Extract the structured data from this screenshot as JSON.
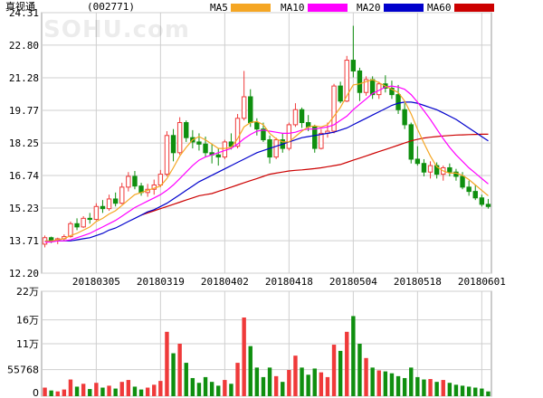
{
  "header": {
    "stock_name": "真视通",
    "stock_code": "(002771)"
  },
  "watermark": "SOHU.com",
  "colors": {
    "background": "#ffffff",
    "grid": "#cfcfcf",
    "frame": "#999999",
    "up": "#ef3a3a",
    "down": "#0f8f0f",
    "ma5": "#f5a623",
    "ma10": "#ff00ff",
    "ma20": "#0000cc",
    "ma60": "#cc0000"
  },
  "legend": [
    {
      "label": "MA5",
      "color": "#f5a623"
    },
    {
      "label": "MA10",
      "color": "#ff00ff"
    },
    {
      "label": "MA20",
      "color": "#0000cc"
    },
    {
      "label": "MA60",
      "color": "#cc0000"
    }
  ],
  "chart_data": [
    {
      "type": "candlestick",
      "title": "真视通 (002771)",
      "ylim": [
        12.2,
        24.31
      ],
      "y_ticks": [
        "24.31",
        "22.80",
        "21.28",
        "19.77",
        "18.25",
        "16.74",
        "15.23",
        "13.71",
        "12.20"
      ],
      "x_ticks": [
        {
          "index": 8,
          "label": "20180305"
        },
        {
          "index": 18,
          "label": "20180319"
        },
        {
          "index": 28,
          "label": "20180402"
        },
        {
          "index": 38,
          "label": "20180418"
        },
        {
          "index": 48,
          "label": "20180504"
        },
        {
          "index": 58,
          "label": "20180518"
        },
        {
          "index": 68,
          "label": "20180601"
        }
      ],
      "candles": [
        [
          13.55,
          13.95,
          13.4,
          13.85
        ],
        [
          13.85,
          13.9,
          13.6,
          13.7
        ],
        [
          13.7,
          13.85,
          13.55,
          13.8
        ],
        [
          13.8,
          14.0,
          13.7,
          13.9
        ],
        [
          13.9,
          14.6,
          13.85,
          14.5
        ],
        [
          14.5,
          14.75,
          14.2,
          14.35
        ],
        [
          14.35,
          14.85,
          14.3,
          14.75
        ],
        [
          14.75,
          15.0,
          14.5,
          14.7
        ],
        [
          14.7,
          15.45,
          14.65,
          15.3
        ],
        [
          15.3,
          15.6,
          15.0,
          15.2
        ],
        [
          15.2,
          15.85,
          15.1,
          15.65
        ],
        [
          15.65,
          15.95,
          15.3,
          15.45
        ],
        [
          15.45,
          16.4,
          15.4,
          16.2
        ],
        [
          16.2,
          16.9,
          16.0,
          16.7
        ],
        [
          16.7,
          16.95,
          16.1,
          16.25
        ],
        [
          16.25,
          16.4,
          15.8,
          15.95
        ],
        [
          15.95,
          16.35,
          15.75,
          16.1
        ],
        [
          16.1,
          16.55,
          15.85,
          16.3
        ],
        [
          16.3,
          17.0,
          16.2,
          16.8
        ],
        [
          16.8,
          18.8,
          16.7,
          18.6
        ],
        [
          18.6,
          18.9,
          17.4,
          17.8
        ],
        [
          17.8,
          19.45,
          17.7,
          19.2
        ],
        [
          19.2,
          19.3,
          18.3,
          18.5
        ],
        [
          18.5,
          18.85,
          18.0,
          18.3
        ],
        [
          18.3,
          18.7,
          17.9,
          18.2
        ],
        [
          18.2,
          18.55,
          17.6,
          17.8
        ],
        [
          17.8,
          18.2,
          17.3,
          17.7
        ],
        [
          17.7,
          18.0,
          17.2,
          17.6
        ],
        [
          17.6,
          18.4,
          17.5,
          18.3
        ],
        [
          18.3,
          18.7,
          17.95,
          18.1
        ],
        [
          18.1,
          19.6,
          18.0,
          19.4
        ],
        [
          19.4,
          21.6,
          19.3,
          20.4
        ],
        [
          20.4,
          20.75,
          19.0,
          19.2
        ],
        [
          19.2,
          19.4,
          18.6,
          18.9
        ],
        [
          18.9,
          19.2,
          18.3,
          18.4
        ],
        [
          18.4,
          18.6,
          17.3,
          17.6
        ],
        [
          17.6,
          18.5,
          17.5,
          18.4
        ],
        [
          18.4,
          18.7,
          17.8,
          18.0
        ],
        [
          18.0,
          19.2,
          17.9,
          19.1
        ],
        [
          19.1,
          20.1,
          19.0,
          19.8
        ],
        [
          19.8,
          19.9,
          18.95,
          19.2
        ],
        [
          19.2,
          19.55,
          18.8,
          19.0
        ],
        [
          19.0,
          19.1,
          17.8,
          18.0
        ],
        [
          18.0,
          18.9,
          17.95,
          18.7
        ],
        [
          18.7,
          19.2,
          18.5,
          18.8
        ],
        [
          18.8,
          21.0,
          18.7,
          20.9
        ],
        [
          20.9,
          21.1,
          20.1,
          20.2
        ],
        [
          20.2,
          22.3,
          20.15,
          22.1
        ],
        [
          22.1,
          23.7,
          21.3,
          21.6
        ],
        [
          21.6,
          21.75,
          20.2,
          20.6
        ],
        [
          20.6,
          21.35,
          20.45,
          21.2
        ],
        [
          21.2,
          21.35,
          20.3,
          20.5
        ],
        [
          20.5,
          21.1,
          20.3,
          21.0
        ],
        [
          21.0,
          21.4,
          20.6,
          20.8
        ],
        [
          20.8,
          21.15,
          20.3,
          20.5
        ],
        [
          20.5,
          20.95,
          19.6,
          19.8
        ],
        [
          19.8,
          20.1,
          18.9,
          19.1
        ],
        [
          19.1,
          19.2,
          17.3,
          17.5
        ],
        [
          17.5,
          18.1,
          17.2,
          17.3
        ],
        [
          17.3,
          17.5,
          16.7,
          16.9
        ],
        [
          16.9,
          17.4,
          16.6,
          17.2
        ],
        [
          17.2,
          17.35,
          16.6,
          16.8
        ],
        [
          16.8,
          17.2,
          16.5,
          17.1
        ],
        [
          17.1,
          17.3,
          16.7,
          16.9
        ],
        [
          16.9,
          17.05,
          16.5,
          16.7
        ],
        [
          16.7,
          16.9,
          16.1,
          16.2
        ],
        [
          16.2,
          16.5,
          15.8,
          16.0
        ],
        [
          16.0,
          16.3,
          15.6,
          15.7
        ],
        [
          15.7,
          15.85,
          15.3,
          15.4
        ],
        [
          15.4,
          15.65,
          15.2,
          15.3
        ]
      ],
      "ma5": [
        13.7,
        13.7,
        13.75,
        13.8,
        13.95,
        14.05,
        14.2,
        14.35,
        14.6,
        14.75,
        14.95,
        15.1,
        15.35,
        15.6,
        15.85,
        15.95,
        16.05,
        16.15,
        16.25,
        16.6,
        17.1,
        17.65,
        18.05,
        18.4,
        18.55,
        18.4,
        18.2,
        18.0,
        18.0,
        18.05,
        18.45,
        19.0,
        19.2,
        19.25,
        19.1,
        18.7,
        18.45,
        18.3,
        18.3,
        18.55,
        18.8,
        19.0,
        19.05,
        19.0,
        19.1,
        19.5,
        19.9,
        20.45,
        20.95,
        21.0,
        21.1,
        21.2,
        21.05,
        20.9,
        20.75,
        20.6,
        20.2,
        19.6,
        18.9,
        18.25,
        17.65,
        17.15,
        16.95,
        16.85,
        16.85,
        16.75,
        16.55,
        16.3,
        16.05,
        15.8
      ],
      "ma10": [
        13.65,
        13.65,
        13.7,
        13.7,
        13.75,
        13.85,
        13.95,
        14.05,
        14.2,
        14.35,
        14.5,
        14.65,
        14.85,
        15.05,
        15.25,
        15.4,
        15.55,
        15.7,
        15.85,
        16.05,
        16.3,
        16.6,
        16.9,
        17.2,
        17.45,
        17.6,
        17.7,
        17.8,
        17.9,
        18.0,
        18.2,
        18.45,
        18.65,
        18.8,
        18.85,
        18.8,
        18.75,
        18.7,
        18.7,
        18.75,
        18.85,
        18.9,
        18.9,
        18.95,
        19.0,
        19.1,
        19.3,
        19.5,
        19.8,
        20.05,
        20.3,
        20.55,
        20.7,
        20.85,
        20.9,
        20.85,
        20.75,
        20.5,
        20.15,
        19.75,
        19.35,
        18.9,
        18.45,
        18.05,
        17.7,
        17.4,
        17.1,
        16.85,
        16.6,
        16.35
      ],
      "ma20": [
        13.7,
        13.7,
        13.7,
        13.7,
        13.7,
        13.75,
        13.8,
        13.85,
        13.95,
        14.05,
        14.2,
        14.3,
        14.45,
        14.6,
        14.75,
        14.9,
        15.05,
        15.15,
        15.3,
        15.45,
        15.65,
        15.85,
        16.05,
        16.25,
        16.45,
        16.6,
        16.75,
        16.9,
        17.05,
        17.2,
        17.35,
        17.5,
        17.65,
        17.8,
        17.9,
        18.0,
        18.1,
        18.2,
        18.3,
        18.4,
        18.5,
        18.55,
        18.6,
        18.65,
        18.7,
        18.75,
        18.85,
        18.95,
        19.1,
        19.25,
        19.4,
        19.55,
        19.7,
        19.85,
        20.0,
        20.1,
        20.15,
        20.15,
        20.1,
        20.0,
        19.9,
        19.8,
        19.65,
        19.5,
        19.35,
        19.15,
        18.95,
        18.75,
        18.55,
        18.35
      ],
      "ma60": [
        null,
        null,
        null,
        null,
        null,
        null,
        null,
        null,
        null,
        null,
        null,
        null,
        null,
        null,
        null,
        14.9,
        15.0,
        15.1,
        15.2,
        15.3,
        15.4,
        15.5,
        15.6,
        15.7,
        15.8,
        15.85,
        15.9,
        16.0,
        16.1,
        16.2,
        16.3,
        16.4,
        16.5,
        16.6,
        16.7,
        16.8,
        16.85,
        16.9,
        16.95,
        16.98,
        17.0,
        17.03,
        17.06,
        17.1,
        17.15,
        17.2,
        17.25,
        17.35,
        17.45,
        17.55,
        17.65,
        17.75,
        17.85,
        17.95,
        18.05,
        18.15,
        18.25,
        18.35,
        18.42,
        18.48,
        18.52,
        18.55,
        18.58,
        18.6,
        18.62,
        18.63,
        18.64,
        18.65,
        18.66,
        18.66
      ]
    },
    {
      "type": "bar",
      "title": "volume",
      "ylim": [
        0,
        220000
      ],
      "y_ticks": [
        "22万",
        "16万",
        "11万",
        "55768",
        "0"
      ],
      "tick_values": [
        220000,
        160000,
        110000,
        55768,
        0
      ],
      "volumes": [
        [
          18000,
          1
        ],
        [
          12000,
          0
        ],
        [
          10000,
          1
        ],
        [
          14000,
          1
        ],
        [
          35000,
          1
        ],
        [
          20000,
          0
        ],
        [
          26000,
          1
        ],
        [
          15000,
          0
        ],
        [
          28000,
          1
        ],
        [
          18000,
          0
        ],
        [
          22000,
          1
        ],
        [
          16000,
          0
        ],
        [
          30000,
          1
        ],
        [
          34000,
          1
        ],
        [
          20000,
          0
        ],
        [
          14000,
          0
        ],
        [
          18000,
          1
        ],
        [
          24000,
          1
        ],
        [
          32000,
          1
        ],
        [
          135000,
          1
        ],
        [
          90000,
          0
        ],
        [
          110000,
          1
        ],
        [
          70000,
          0
        ],
        [
          38000,
          0
        ],
        [
          28000,
          0
        ],
        [
          40000,
          0
        ],
        [
          30000,
          0
        ],
        [
          22000,
          0
        ],
        [
          34000,
          1
        ],
        [
          26000,
          0
        ],
        [
          70000,
          1
        ],
        [
          165000,
          1
        ],
        [
          105000,
          0
        ],
        [
          60000,
          0
        ],
        [
          40000,
          0
        ],
        [
          60000,
          0
        ],
        [
          42000,
          1
        ],
        [
          30000,
          0
        ],
        [
          55000,
          1
        ],
        [
          85000,
          1
        ],
        [
          60000,
          0
        ],
        [
          45000,
          0
        ],
        [
          58000,
          0
        ],
        [
          50000,
          1
        ],
        [
          40000,
          1
        ],
        [
          108000,
          1
        ],
        [
          95000,
          0
        ],
        [
          135000,
          1
        ],
        [
          168000,
          0
        ],
        [
          110000,
          0
        ],
        [
          80000,
          1
        ],
        [
          60000,
          0
        ],
        [
          54000,
          1
        ],
        [
          52000,
          0
        ],
        [
          48000,
          0
        ],
        [
          42000,
          0
        ],
        [
          38000,
          0
        ],
        [
          60000,
          0
        ],
        [
          40000,
          0
        ],
        [
          35000,
          0
        ],
        [
          36000,
          1
        ],
        [
          30000,
          0
        ],
        [
          34000,
          1
        ],
        [
          28000,
          0
        ],
        [
          24000,
          0
        ],
        [
          22000,
          0
        ],
        [
          20000,
          0
        ],
        [
          18000,
          0
        ],
        [
          16000,
          0
        ],
        [
          10000,
          0
        ]
      ]
    }
  ]
}
